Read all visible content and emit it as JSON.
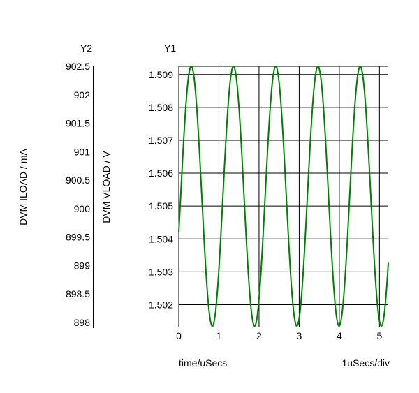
{
  "chart_data": {
    "type": "line",
    "x_axis": {
      "label": "time/uSecs",
      "division_label": "1uSecs/div",
      "range": [
        0,
        5.22
      ],
      "ticks": [
        0,
        1,
        2,
        3,
        4,
        5
      ]
    },
    "y1_axis": {
      "title": "Y1",
      "label": "DVM VLOAD / V",
      "range": [
        1.50133,
        1.50925
      ],
      "ticks": [
        1.502,
        1.503,
        1.504,
        1.505,
        1.506,
        1.507,
        1.508,
        1.509
      ],
      "tick_labels": [
        "1.502",
        "1.503",
        "1.504",
        "1.505",
        "1.506",
        "1.507",
        "1.508",
        "1.509"
      ]
    },
    "y2_axis": {
      "title": "Y2",
      "label": "DVM ILOAD / mA",
      "range": [
        897.9,
        902.5
      ],
      "ticks": [
        898,
        898.5,
        899,
        899.5,
        900,
        900.5,
        901,
        901.5,
        902,
        902.5
      ],
      "tick_labels": [
        "898",
        "898.5",
        "899",
        "899.5",
        "900",
        "900.5",
        "901",
        "901.5",
        "902",
        "902.5"
      ]
    },
    "grid": true,
    "series": [
      {
        "axis": "y1",
        "color": "#007f00",
        "waveform": "sine",
        "offset": 1.5053,
        "amplitude": 0.00395,
        "frequency_MHz": 0.95,
        "phase_rad": -0.28,
        "x_range": [
          0,
          5.22
        ]
      }
    ]
  }
}
